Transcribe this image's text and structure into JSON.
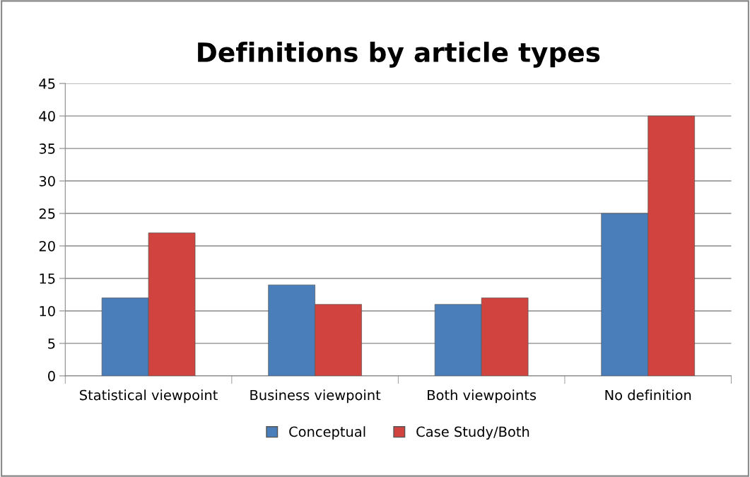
{
  "chart_data": {
    "type": "bar",
    "title": "Definitions by article types",
    "categories": [
      "Statistical viewpoint",
      "Business viewpoint",
      "Both viewpoints",
      "No definition"
    ],
    "series": [
      {
        "name": "Conceptual",
        "color": "#4a7ebb",
        "values": [
          12,
          14,
          11,
          25
        ]
      },
      {
        "name": "Case Study/Both",
        "color": "#d0433e",
        "values": [
          22,
          11,
          12,
          40
        ]
      }
    ],
    "ylim": [
      0,
      45
    ],
    "yticks": [
      0,
      5,
      10,
      15,
      20,
      25,
      30,
      35,
      40,
      45
    ],
    "grid": "y",
    "legend": "bottom"
  }
}
